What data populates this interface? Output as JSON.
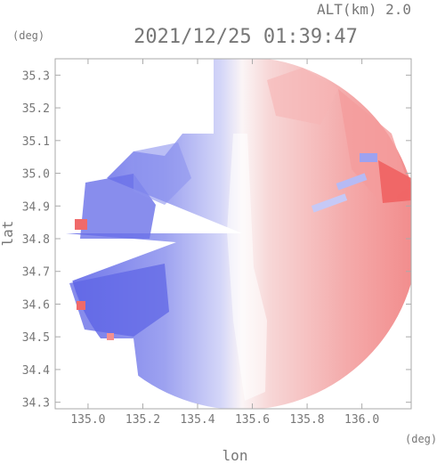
{
  "header": {
    "altitude_label": "ALT(km) 2.0",
    "timestamp": "2021/12/25 01:39:47"
  },
  "chart_data": {
    "type": "heatmap",
    "title": "2021/12/25 01:39:47",
    "subtitle": "ALT(km) 2.0",
    "xlabel": "lon",
    "ylabel": "lat",
    "x_unit": "(deg)",
    "y_unit": "(deg)",
    "xlim": [
      134.88,
      136.18
    ],
    "ylim": [
      34.28,
      35.35
    ],
    "x_ticks": [
      135.0,
      135.2,
      135.4,
      135.6,
      135.8,
      136.0
    ],
    "x_tick_labels": [
      "135.0",
      "135.2",
      "135.4",
      "135.6",
      "135.8",
      "136.0"
    ],
    "y_ticks": [
      34.3,
      34.4,
      34.5,
      34.6,
      34.7,
      34.8,
      34.9,
      35.0,
      35.1,
      35.2,
      35.3
    ],
    "y_tick_labels": [
      "34.3",
      "34.4",
      "34.5",
      "34.6",
      "34.7",
      "34.8",
      "34.9",
      "35.0",
      "35.1",
      "35.2",
      "35.3"
    ],
    "grid": false,
    "colors": {
      "negative": "#5a62e6",
      "neutral": "#ffffff",
      "positive": "#f25a5a",
      "axis": "#aaaaaa",
      "text": "#777777"
    },
    "echo_regions": [
      {
        "name": "west-blue",
        "lon": [
          134.9,
          135.5
        ],
        "lat": [
          34.32,
          35.1
        ],
        "sign": "negative"
      },
      {
        "name": "center-neutral",
        "lon": [
          135.5,
          135.62
        ],
        "lat": [
          34.35,
          35.25
        ],
        "sign": "near-zero"
      },
      {
        "name": "east-red",
        "lon": [
          135.62,
          136.18
        ],
        "lat": [
          34.4,
          35.33
        ],
        "sign": "positive"
      }
    ]
  }
}
